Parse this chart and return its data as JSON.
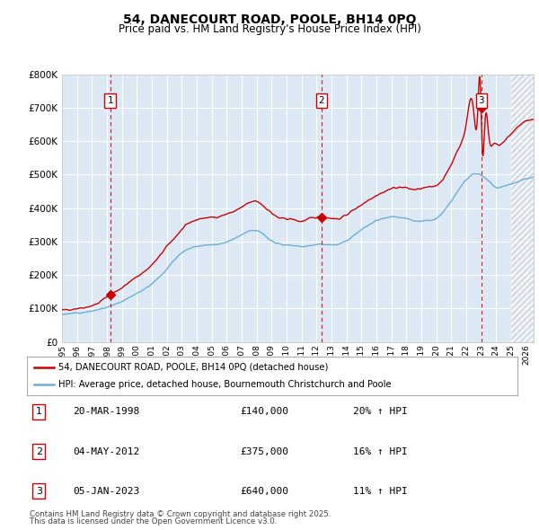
{
  "title": "54, DANECOURT ROAD, POOLE, BH14 0PQ",
  "subtitle": "Price paid vs. HM Land Registry's House Price Index (HPI)",
  "legend_line1": "54, DANECOURT ROAD, POOLE, BH14 0PQ (detached house)",
  "legend_line2": "HPI: Average price, detached house, Bournemouth Christchurch and Poole",
  "footer1": "Contains HM Land Registry data © Crown copyright and database right 2025.",
  "footer2": "This data is licensed under the Open Government Licence v3.0.",
  "table_rows": [
    {
      "num": "1",
      "date": "20-MAR-1998",
      "price": "£140,000",
      "hpi": "20% ↑ HPI"
    },
    {
      "num": "2",
      "date": "04-MAY-2012",
      "price": "£375,000",
      "hpi": "16% ↑ HPI"
    },
    {
      "num": "3",
      "date": "05-JAN-2023",
      "price": "£640,000",
      "hpi": "11% ↑ HPI"
    }
  ],
  "sale_years": [
    1998.22,
    2012.34,
    2023.01
  ],
  "sale_prices": [
    140000,
    375000,
    640000
  ],
  "hpi_color": "#6baed6",
  "price_color": "#cc0000",
  "bg_color": "#dce9f5",
  "plot_bg": "#dce9f5",
  "grid_color": "#ffffff",
  "dashed_color": "#cc0000",
  "ylim": [
    0,
    800000
  ],
  "yticks": [
    0,
    100000,
    200000,
    300000,
    400000,
    500000,
    600000,
    700000,
    800000
  ],
  "xmin": 1995,
  "xmax": 2026.5,
  "future_start": 2025
}
